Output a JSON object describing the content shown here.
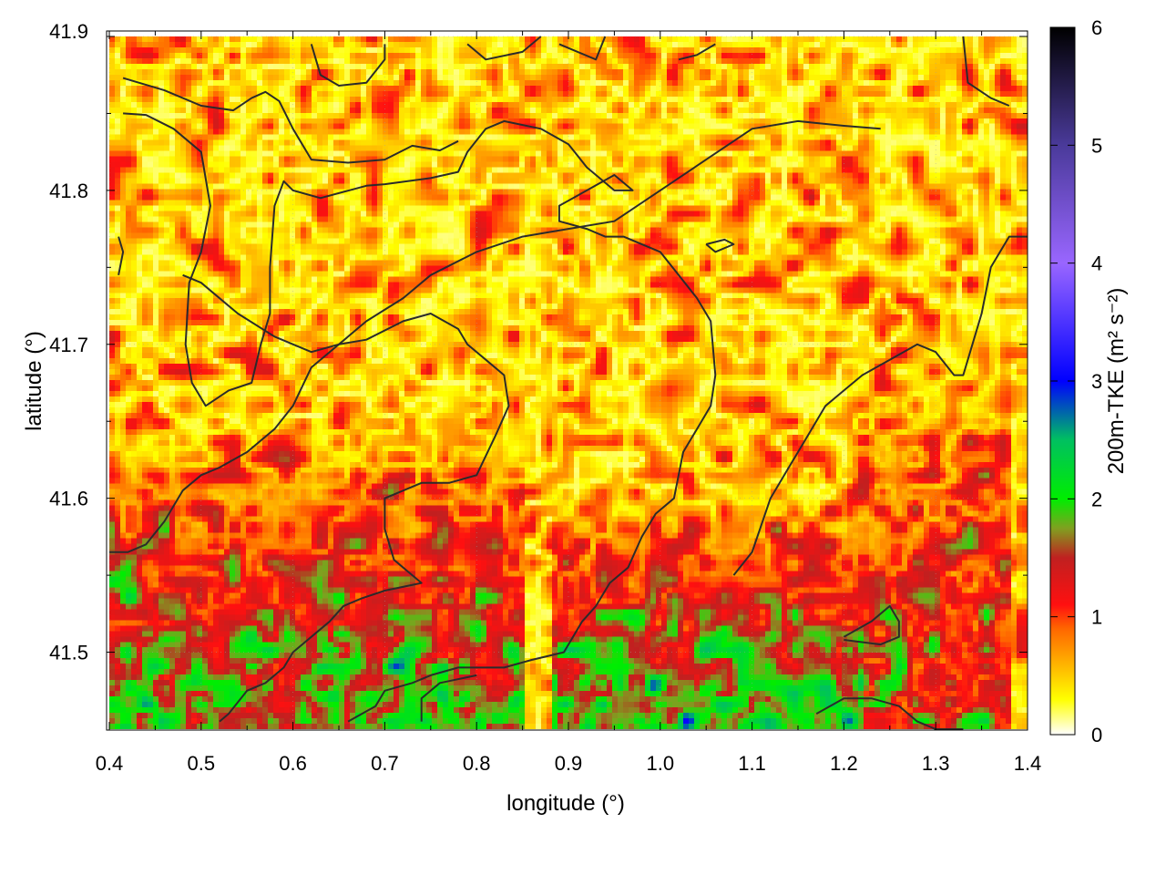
{
  "chart_data": {
    "type": "heatmap",
    "xlabel": "longitude (°)",
    "ylabel": "latitude (°)",
    "colorbar_label": "200m-TKE (m² s⁻²)",
    "xlim": [
      0.4,
      1.4
    ],
    "ylim": [
      41.45,
      41.9
    ],
    "x_ticks": [
      "0.4",
      "0.5",
      "0.6",
      "0.7",
      "0.8",
      "0.9",
      "1.0",
      "1.1",
      "1.2",
      "1.3",
      "1.4"
    ],
    "y_ticks": [
      "41.5",
      "41.6",
      "41.7",
      "41.8",
      "41.9"
    ],
    "colorbar_range": [
      0,
      6
    ],
    "colorbar_ticks": [
      "0",
      "1",
      "2",
      "3",
      "4",
      "5",
      "6"
    ],
    "grid": true,
    "colormap": [
      {
        "v": 0.0,
        "color": "#ffffff"
      },
      {
        "v": 0.3,
        "color": "#ffff00"
      },
      {
        "v": 0.9,
        "color": "#ff6600"
      },
      {
        "v": 1.1,
        "color": "#ff1010"
      },
      {
        "v": 1.5,
        "color": "#c02020"
      },
      {
        "v": 1.75,
        "color": "#80a020"
      },
      {
        "v": 2.0,
        "color": "#00ee00"
      },
      {
        "v": 2.5,
        "color": "#00c060"
      },
      {
        "v": 3.0,
        "color": "#0000ff"
      },
      {
        "v": 4.0,
        "color": "#9966ff"
      },
      {
        "v": 5.0,
        "color": "#4a3a9a"
      },
      {
        "v": 6.0,
        "color": "#000000"
      }
    ],
    "field_description": "200m turbulent kinetic energy over a lon/lat grid, mostly 0–1.6 m2 s-2 with 1.8–3.0 pockets in the lower part",
    "contours": [
      [
        [
          0.415,
          41.873
        ],
        [
          0.46,
          41.865
        ],
        [
          0.5,
          41.855
        ],
        [
          0.535,
          41.852
        ],
        [
          0.555,
          41.86
        ],
        [
          0.57,
          41.864
        ],
        [
          0.585,
          41.858
        ],
        [
          0.6,
          41.84
        ],
        [
          0.62,
          41.82
        ],
        [
          0.66,
          41.818
        ],
        [
          0.7,
          41.82
        ],
        [
          0.73,
          41.829
        ],
        [
          0.76,
          41.826
        ],
        [
          0.78,
          41.832
        ]
      ],
      [
        [
          0.415,
          41.85
        ],
        [
          0.44,
          41.849
        ],
        [
          0.47,
          41.84
        ],
        [
          0.5,
          41.825
        ],
        [
          0.51,
          41.79
        ],
        [
          0.5,
          41.76
        ],
        [
          0.487,
          41.74
        ],
        [
          0.483,
          41.7
        ],
        [
          0.49,
          41.675
        ],
        [
          0.505,
          41.66
        ],
        [
          0.53,
          41.67
        ],
        [
          0.555,
          41.675
        ],
        [
          0.565,
          41.7
        ],
        [
          0.575,
          41.72
        ],
        [
          0.575,
          41.75
        ],
        [
          0.58,
          41.79
        ],
        [
          0.59,
          41.806
        ],
        [
          0.6,
          41.8
        ],
        [
          0.63,
          41.795
        ],
        [
          0.68,
          41.803
        ],
        [
          0.7,
          41.804
        ],
        [
          0.75,
          41.808
        ],
        [
          0.78,
          41.812
        ],
        [
          0.79,
          41.825
        ],
        [
          0.81,
          41.84
        ],
        [
          0.83,
          41.845
        ],
        [
          0.87,
          41.84
        ],
        [
          0.9,
          41.83
        ],
        [
          0.92,
          41.815
        ],
        [
          0.95,
          41.8
        ],
        [
          0.97,
          41.8
        ],
        [
          0.95,
          41.81
        ],
        [
          0.92,
          41.8
        ],
        [
          0.89,
          41.79
        ],
        [
          0.89,
          41.78
        ],
        [
          0.92,
          41.775
        ],
        [
          0.94,
          41.77
        ],
        [
          0.96,
          41.77
        ],
        [
          1.0,
          41.76
        ],
        [
          1.02,
          41.745
        ],
        [
          1.04,
          41.73
        ],
        [
          1.055,
          41.715
        ],
        [
          1.06,
          41.68
        ],
        [
          1.055,
          41.66
        ],
        [
          1.04,
          41.645
        ],
        [
          1.025,
          41.63
        ],
        [
          1.015,
          41.6
        ],
        [
          0.995,
          41.59
        ],
        [
          0.98,
          41.575
        ],
        [
          0.965,
          41.555
        ],
        [
          0.945,
          41.545
        ],
        [
          0.93,
          41.53
        ],
        [
          0.915,
          41.52
        ],
        [
          0.895,
          41.5
        ],
        [
          0.86,
          41.495
        ],
        [
          0.83,
          41.49
        ],
        [
          0.8,
          41.49
        ],
        [
          0.78,
          41.49
        ],
        [
          0.75,
          41.485
        ],
        [
          0.73,
          41.48
        ],
        [
          0.7,
          41.475
        ],
        [
          0.69,
          41.465
        ],
        [
          0.66,
          41.455
        ]
      ],
      [
        [
          0.48,
          41.745
        ],
        [
          0.5,
          41.74
        ],
        [
          0.54,
          41.72
        ],
        [
          0.58,
          41.705
        ],
        [
          0.62,
          41.695
        ],
        [
          0.65,
          41.7
        ],
        [
          0.68,
          41.703
        ],
        [
          0.72,
          41.715
        ],
        [
          0.75,
          41.72
        ],
        [
          0.78,
          41.71
        ],
        [
          0.79,
          41.7
        ],
        [
          0.81,
          41.69
        ],
        [
          0.83,
          41.68
        ],
        [
          0.835,
          41.66
        ],
        [
          0.82,
          41.64
        ],
        [
          0.8,
          41.615
        ],
        [
          0.77,
          41.61
        ],
        [
          0.74,
          41.61
        ],
        [
          0.7,
          41.6
        ],
        [
          0.7,
          41.58
        ],
        [
          0.71,
          41.56
        ],
        [
          0.73,
          41.55
        ],
        [
          0.74,
          41.545
        ],
        [
          0.7,
          41.54
        ],
        [
          0.675,
          41.535
        ],
        [
          0.655,
          41.53
        ],
        [
          0.64,
          41.52
        ],
        [
          0.62,
          41.51
        ],
        [
          0.6,
          41.5
        ],
        [
          0.59,
          41.49
        ],
        [
          0.57,
          41.48
        ],
        [
          0.55,
          41.475
        ],
        [
          0.53,
          41.46
        ],
        [
          0.52,
          41.455
        ]
      ],
      [
        [
          0.4,
          41.565
        ],
        [
          0.42,
          41.565
        ],
        [
          0.44,
          41.57
        ],
        [
          0.46,
          41.585
        ],
        [
          0.48,
          41.605
        ],
        [
          0.5,
          41.615
        ],
        [
          0.52,
          41.62
        ],
        [
          0.55,
          41.63
        ],
        [
          0.58,
          41.645
        ],
        [
          0.6,
          41.66
        ],
        [
          0.62,
          41.685
        ],
        [
          0.65,
          41.7
        ],
        [
          0.68,
          41.715
        ],
        [
          0.72,
          41.73
        ],
        [
          0.75,
          41.745
        ],
        [
          0.8,
          41.76
        ],
        [
          0.85,
          41.77
        ],
        [
          0.9,
          41.775
        ],
        [
          0.95,
          41.78
        ],
        [
          1.0,
          41.8
        ],
        [
          1.05,
          41.82
        ],
        [
          1.1,
          41.84
        ],
        [
          1.15,
          41.845
        ],
        [
          1.2,
          41.842
        ],
        [
          1.24,
          41.84
        ]
      ],
      [
        [
          1.08,
          41.55
        ],
        [
          1.1,
          41.565
        ],
        [
          1.12,
          41.6
        ],
        [
          1.14,
          41.62
        ],
        [
          1.16,
          41.64
        ],
        [
          1.18,
          41.66
        ],
        [
          1.2,
          41.67
        ],
        [
          1.22,
          41.68
        ],
        [
          1.25,
          41.69
        ],
        [
          1.28,
          41.7
        ],
        [
          1.3,
          41.695
        ],
        [
          1.32,
          41.68
        ],
        [
          1.33,
          41.68
        ],
        [
          1.34,
          41.7
        ],
        [
          1.35,
          41.72
        ],
        [
          1.36,
          41.75
        ],
        [
          1.38,
          41.77
        ],
        [
          1.4,
          41.77
        ]
      ],
      [
        [
          1.17,
          41.46
        ],
        [
          1.2,
          41.47
        ],
        [
          1.23,
          41.47
        ],
        [
          1.26,
          41.465
        ],
        [
          1.28,
          41.455
        ],
        [
          1.3,
          41.45
        ],
        [
          1.33,
          41.45
        ]
      ],
      [
        [
          1.2,
          41.51
        ],
        [
          1.23,
          41.52
        ],
        [
          1.25,
          41.53
        ],
        [
          1.26,
          41.52
        ],
        [
          1.26,
          41.51
        ],
        [
          1.24,
          41.505
        ],
        [
          1.2,
          41.508
        ]
      ],
      [
        [
          1.05,
          41.765
        ],
        [
          1.07,
          41.768
        ],
        [
          1.08,
          41.765
        ],
        [
          1.06,
          41.76
        ],
        [
          1.05,
          41.765
        ]
      ],
      [
        [
          0.62,
          41.895
        ],
        [
          0.63,
          41.875
        ],
        [
          0.65,
          41.868
        ],
        [
          0.68,
          41.87
        ],
        [
          0.7,
          41.885
        ],
        [
          0.7,
          41.895
        ]
      ],
      [
        [
          0.79,
          41.895
        ],
        [
          0.81,
          41.885
        ],
        [
          0.85,
          41.89
        ],
        [
          0.87,
          41.9
        ]
      ],
      [
        [
          0.89,
          41.895
        ],
        [
          0.91,
          41.89
        ],
        [
          0.93,
          41.885
        ],
        [
          0.94,
          41.9
        ]
      ],
      [
        [
          1.02,
          41.885
        ],
        [
          1.04,
          41.888
        ],
        [
          1.06,
          41.895
        ]
      ],
      [
        [
          1.33,
          41.9
        ],
        [
          1.335,
          41.87
        ],
        [
          1.36,
          41.86
        ],
        [
          1.38,
          41.855
        ]
      ],
      [
        [
          0.41,
          41.77
        ],
        [
          0.415,
          41.76
        ],
        [
          0.41,
          41.745
        ]
      ],
      [
        [
          0.74,
          41.455
        ],
        [
          0.74,
          41.47
        ],
        [
          0.76,
          41.48
        ],
        [
          0.8,
          41.485
        ]
      ]
    ]
  }
}
